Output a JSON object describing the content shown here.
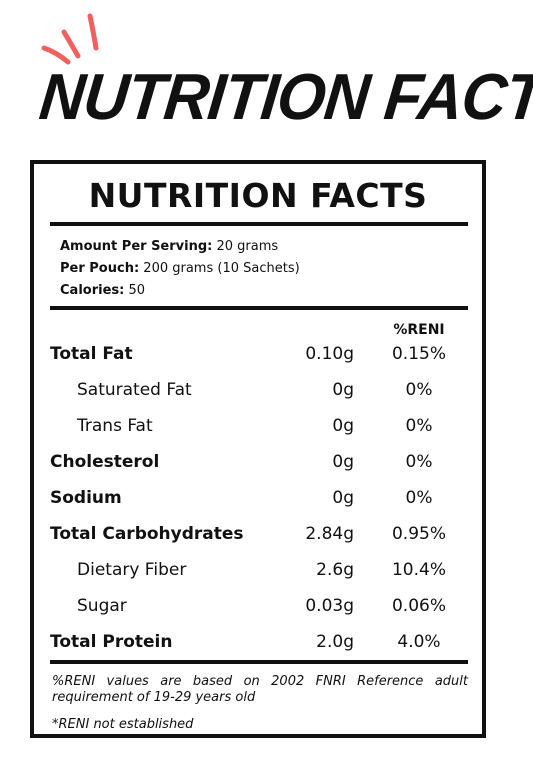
{
  "header": {
    "brush_title": "NUTRITION FACTS",
    "accent_color": "#f0605f"
  },
  "label": {
    "title": "NUTRITION FACTS",
    "amount_per_serving": {
      "key": "Amount Per Serving:",
      "value": "20 grams"
    },
    "per_pouch": {
      "key": "Per Pouch:",
      "value": "200 grams (10 Sachets)"
    },
    "calories": {
      "key": "Calories:",
      "value": "50"
    },
    "column_header": "%RENI",
    "rows": [
      {
        "name": "Total Fat",
        "amount": "0.10g",
        "reni": "0.15%",
        "bold": true
      },
      {
        "name": "Saturated Fat",
        "amount": "0g",
        "reni": "0%",
        "bold": false
      },
      {
        "name": "Trans Fat",
        "amount": "0g",
        "reni": "0%",
        "bold": false
      },
      {
        "name": "Cholesterol",
        "amount": "0g",
        "reni": "0%",
        "bold": true
      },
      {
        "name": "Sodium",
        "amount": "0g",
        "reni": "0%",
        "bold": true
      },
      {
        "name": "Total Carbohydrates",
        "amount": "2.84g",
        "reni": "0.95%",
        "bold": true
      },
      {
        "name": "Dietary Fiber",
        "amount": "2.6g",
        "reni": "10.4%",
        "bold": false
      },
      {
        "name": "Sugar",
        "amount": "0.03g",
        "reni": "0.06%",
        "bold": false
      },
      {
        "name": "Total Protein",
        "amount": "2.0g",
        "reni": "4.0%",
        "bold": true
      }
    ],
    "footnote": "%RENI values are based on 2002 FNRI Reference adult requirement of 19-29 years old",
    "footnote2": "*RENI not established"
  }
}
